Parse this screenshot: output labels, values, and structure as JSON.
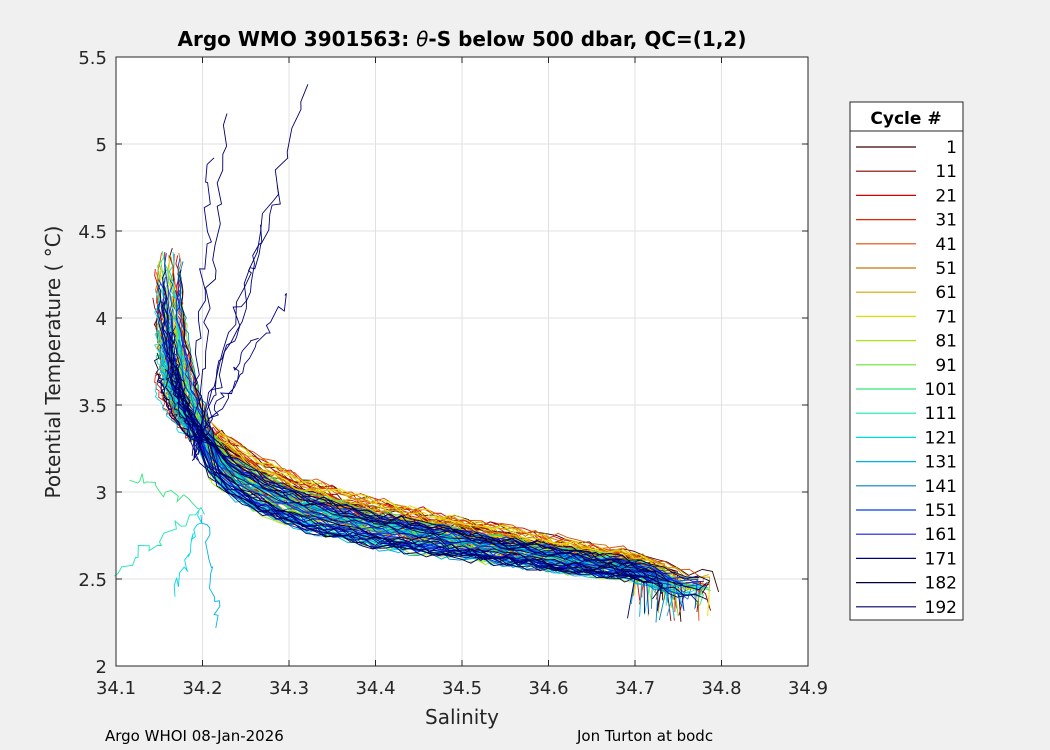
{
  "chart_data": {
    "type": "line",
    "title_prefix": "Argo WMO 3901563: ",
    "title_theta": "θ",
    "title_suffix": "-S below 500 dbar,  QC=(1,2)",
    "xlabel": "Salinity",
    "ylabel": "Potential Temperature ( °C)",
    "xlim": [
      34.1,
      34.9
    ],
    "ylim": [
      2,
      5.5
    ],
    "xticks": [
      "34.1",
      "34.2",
      "34.3",
      "34.4",
      "34.5",
      "34.6",
      "34.7",
      "34.8",
      "34.9"
    ],
    "yticks": [
      "2",
      "2.5",
      "3",
      "3.5",
      "4",
      "4.5",
      "5",
      "5.5"
    ],
    "grid": true,
    "legend": {
      "title": "Cycle #",
      "position": "right",
      "entries": [
        "1",
        "11",
        "21",
        "31",
        "41",
        "51",
        "61",
        "71",
        "81",
        "91",
        "101",
        "111",
        "121",
        "131",
        "141",
        "151",
        "161",
        "171",
        "182",
        "192"
      ],
      "colors": [
        "#3d0000",
        "#8a0000",
        "#d40000",
        "#e02500",
        "#e04a00",
        "#c97500",
        "#d6a300",
        "#e0e000",
        "#a8e61a",
        "#66e633",
        "#33e680",
        "#1ae6b3",
        "#00d9e6",
        "#00b3e6",
        "#0080c0",
        "#0040e6",
        "#1a1ae6",
        "#000080",
        "#000040",
        "#000066"
      ]
    },
    "series_summary": {
      "description": "θ-S curves per cycle; cold/fresh near S 34.15–34.25 at θ 3.5–4.5, merging to S 34.75 at θ 2.5",
      "backbone": [
        [
          34.15,
          3.95
        ],
        [
          34.16,
          3.7
        ],
        [
          34.18,
          3.45
        ],
        [
          34.2,
          3.25
        ],
        [
          34.23,
          3.1
        ],
        [
          34.27,
          2.98
        ],
        [
          34.32,
          2.88
        ],
        [
          34.4,
          2.78
        ],
        [
          34.5,
          2.7
        ],
        [
          34.6,
          2.62
        ],
        [
          34.7,
          2.55
        ],
        [
          34.76,
          2.45
        ]
      ]
    }
  },
  "footer": {
    "left": "Argo WHOI 08-Jan-2026",
    "right": "Jon Turton at bodc"
  }
}
